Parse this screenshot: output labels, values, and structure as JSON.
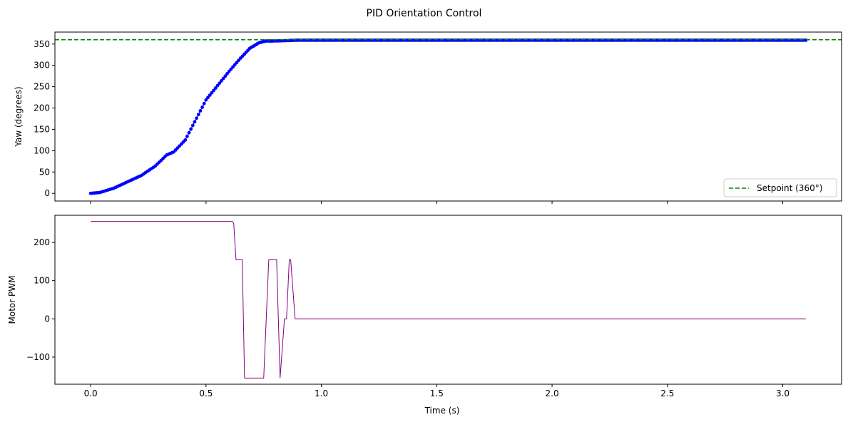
{
  "chart_data": {
    "type": "line",
    "title": "PID Orientation Control",
    "xlabel": "Time (s)",
    "shared_x": true,
    "xlim": [
      -0.155,
      3.255
    ],
    "xticks": [
      0.0,
      0.5,
      1.0,
      1.5,
      2.0,
      2.5,
      3.0
    ],
    "xtick_labels": [
      "0.0",
      "0.5",
      "1.0",
      "1.5",
      "2.0",
      "2.5",
      "3.0"
    ],
    "subplots": [
      {
        "name": "yaw",
        "ylabel": "Yaw (degrees)",
        "ylim": [
          -18,
          378
        ],
        "yticks": [
          0,
          50,
          100,
          150,
          200,
          250,
          300,
          350
        ],
        "grid": false,
        "legend": {
          "position": "lower right",
          "entries": [
            {
              "label": "Setpoint (360°)",
              "color": "#008000",
              "style": "dashed"
            }
          ]
        },
        "series": [
          {
            "name": "Yaw",
            "type": "scatter-line",
            "color": "#0000ff",
            "x": [
              0.0,
              0.04,
              0.1,
              0.16,
              0.22,
              0.28,
              0.33,
              0.36,
              0.41,
              0.5,
              0.6,
              0.65,
              0.69,
              0.73,
              0.76,
              0.79,
              0.85,
              0.9,
              3.1
            ],
            "y": [
              0,
              2,
              12,
              27,
              42,
              64,
              90,
              97,
              125,
              219,
              286,
              317,
              340,
              353,
              357,
              357,
              358,
              359,
              359
            ]
          },
          {
            "name": "Setpoint (360°)",
            "type": "hline",
            "color": "#008000",
            "style": "dashed",
            "y": 360
          }
        ]
      },
      {
        "name": "pwm",
        "ylabel": "Motor PWM",
        "ylim": [
          -171,
          271
        ],
        "yticks": [
          -100,
          0,
          100,
          200
        ],
        "grid": false,
        "series": [
          {
            "name": "Motor PWM",
            "type": "line",
            "color": "#800080",
            "x": [
              0.0,
              0.614,
              0.62,
              0.63,
              0.657,
              0.667,
              0.75,
              0.772,
              0.806,
              0.821,
              0.84,
              0.849,
              0.861,
              0.867,
              0.886,
              3.1
            ],
            "y": [
              255,
              255,
              250,
              155,
              155,
              -155,
              -155,
              155,
              155,
              -155,
              0,
              0,
              155,
              155,
              0,
              0
            ]
          }
        ]
      }
    ]
  }
}
